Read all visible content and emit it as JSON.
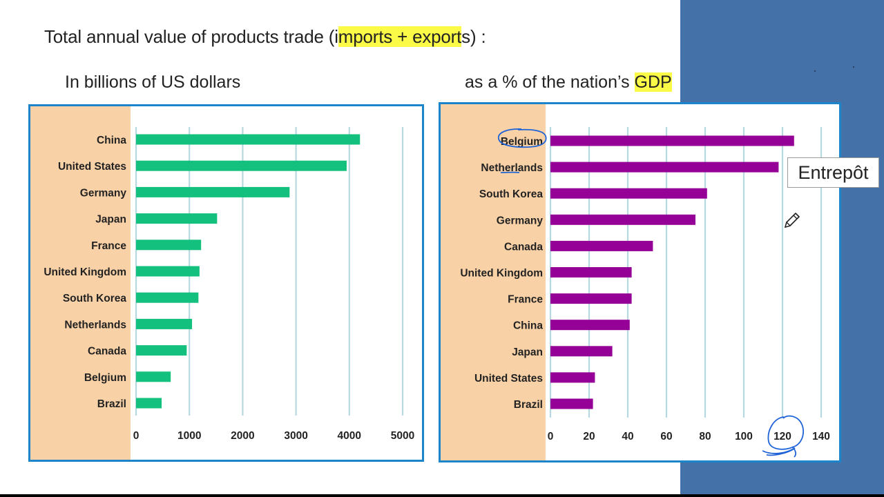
{
  "slide": {
    "title_pre": "Total annual value of products trade (i",
    "title_highlight": "mports + export",
    "title_post": "s) :",
    "subtitle_left": "In billions of US dollars",
    "subtitle_right_pre": "as a % of the nation’s ",
    "subtitle_right_highlight": "GDP",
    "annotation_label": "Entrepôt"
  },
  "colors": {
    "left_bar": "#13c07d",
    "right_bar": "#950096",
    "label_panel": "#f9d1a6",
    "chart_border": "#1c84c8",
    "gridline": "#b7d8df",
    "highlight": "#fbfb47",
    "side_panel": "#4472a8",
    "ink": "#1f63d8"
  },
  "icons": [
    "pencil-cursor-icon"
  ],
  "chart_data": [
    {
      "type": "bar",
      "orientation": "horizontal",
      "title": "In billions of US dollars",
      "categories": [
        "China",
        "United States",
        "Germany",
        "Japan",
        "France",
        "United Kingdom",
        "South Korea",
        "Netherlands",
        "Canada",
        "Belgium",
        "Brazil"
      ],
      "values": [
        4200,
        3950,
        2880,
        1520,
        1220,
        1190,
        1170,
        1050,
        950,
        650,
        480
      ],
      "xlim": [
        0,
        5000
      ],
      "xticks": [
        0,
        1000,
        2000,
        3000,
        4000,
        5000
      ],
      "grid": true
    },
    {
      "type": "bar",
      "orientation": "horizontal",
      "title": "as a % of the nation’s GDP",
      "categories": [
        "Belgium",
        "Netherlands",
        "South Korea",
        "Germany",
        "Canada",
        "United Kingdom",
        "France",
        "China",
        "Japan",
        "United States",
        "Brazil"
      ],
      "values": [
        126,
        118,
        81,
        75,
        53,
        42,
        42,
        41,
        32,
        23,
        22
      ],
      "xlim": [
        0,
        140
      ],
      "xticks": [
        0,
        20,
        40,
        60,
        80,
        100,
        120,
        140
      ],
      "grid": true
    }
  ]
}
